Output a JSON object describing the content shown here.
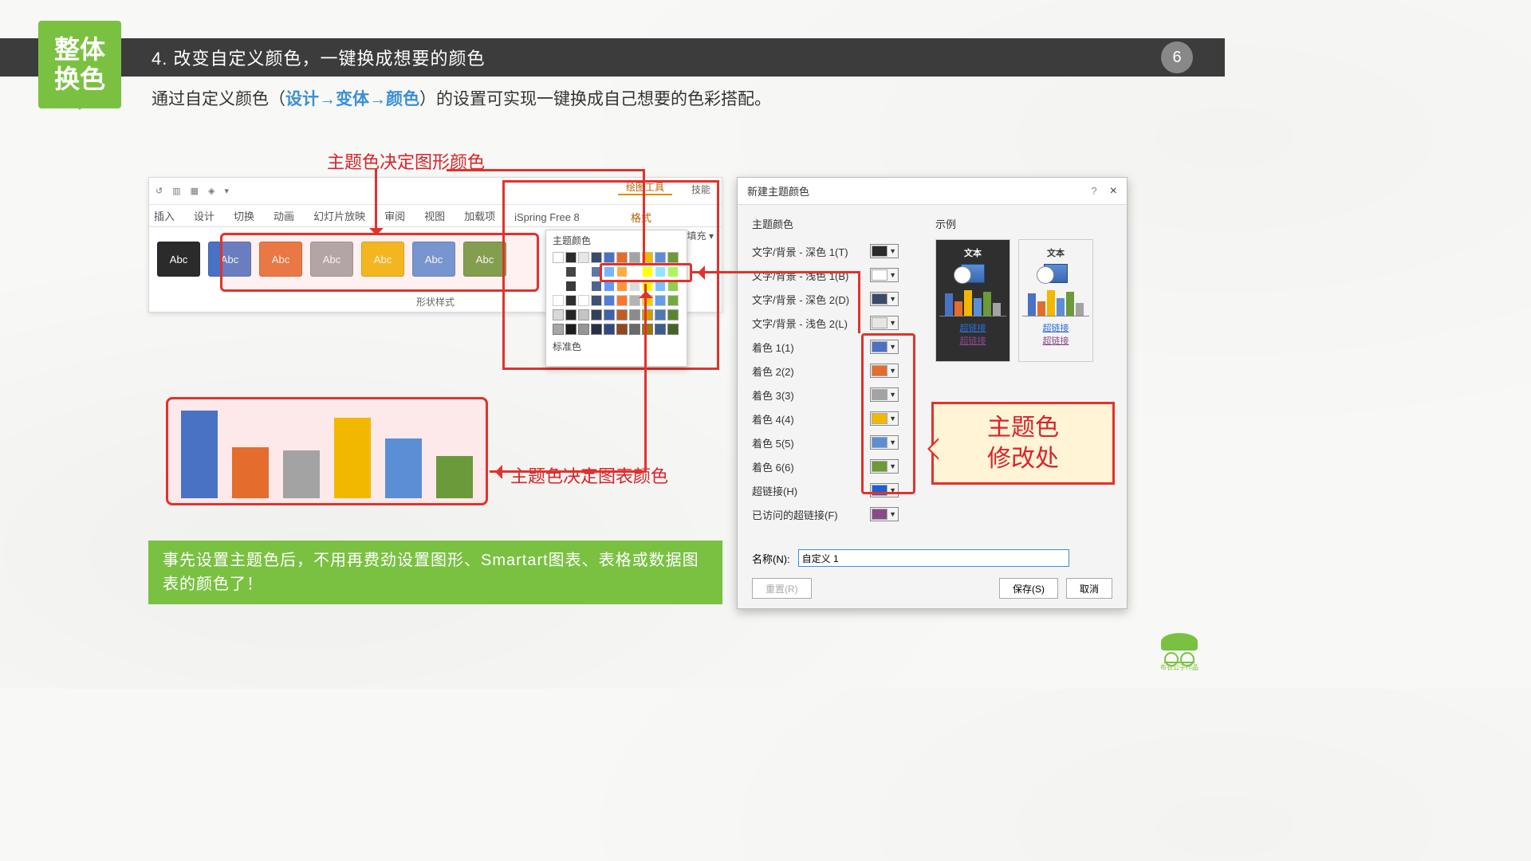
{
  "page_number": "6",
  "tag": "整体\n换色",
  "title": "4. 改变自定义颜色，一键换成想要的颜色",
  "subtitle_pre": "通过自定义颜色（",
  "subtitle_hl": "设计→变体→颜色",
  "subtitle_post": "）的设置可实现一键换成自己想要的色彩搭配。",
  "callout_top": "主题色决定图形颜色",
  "callout_right": "主题色决定图表颜色",
  "callout_box": "主题色\n修改处",
  "tip": "事先设置主题色后，不用再费劲设置图形、Smartart图表、表格或数据图表的颜色了！",
  "ribbon": {
    "tabs": [
      "插入",
      "设计",
      "切换",
      "动画",
      "幻灯片放映",
      "审阅",
      "视图",
      "加载项",
      "iSpring Free 8"
    ],
    "draw_tools": "绘图工具",
    "format": "格式",
    "tech": "技能",
    "abc_label": "Abc",
    "shape_style": "形状样式",
    "shape_fill": "形状填充",
    "theme_color": "主题颜色",
    "standard_color": "标准色",
    "abc_colors": [
      "#2b2b2b",
      "#4a72c4",
      "#e46c2c",
      "#a3a3a3",
      "#f2b800",
      "#5a8fd6",
      "#6a9a3a"
    ],
    "theme_row": [
      "#ffffff",
      "#2b2b2b",
      "#e7e6e6",
      "#3a4a6b",
      "#4a72c4",
      "#e46c2c",
      "#a3a3a3",
      "#f2b800",
      "#5a8fd6",
      "#6a9a3a"
    ],
    "theme_row_selected": [
      "#4a72c4",
      "#e46c2c",
      "#a3a3a3",
      "#f2b800",
      "#5a8fd6",
      "#6a9a3a"
    ]
  },
  "chart": {
    "type": "bar",
    "values": [
      100,
      58,
      55,
      92,
      68,
      48
    ],
    "colors": [
      "#4a72c4",
      "#e46c2c",
      "#a3a3a3",
      "#f2b800",
      "#5a8fd6",
      "#6a9a3a"
    ]
  },
  "dialog": {
    "title": "新建主题颜色",
    "help": "?",
    "close": "×",
    "section_theme": "主题颜色",
    "section_sample": "示例",
    "rows": [
      {
        "label": "文字/背景 - 深色 1(T)",
        "color": "#2b2b2b"
      },
      {
        "label": "文字/背景 - 浅色 1(B)",
        "color": "#ffffff"
      },
      {
        "label": "文字/背景 - 深色 2(D)",
        "color": "#3a4a6b"
      },
      {
        "label": "文字/背景 - 浅色 2(L)",
        "color": "#e7e6e6"
      },
      {
        "label": "着色 1(1)",
        "color": "#4a72c4"
      },
      {
        "label": "着色 2(2)",
        "color": "#e46c2c"
      },
      {
        "label": "着色 3(3)",
        "color": "#a3a3a3"
      },
      {
        "label": "着色 4(4)",
        "color": "#f2b800"
      },
      {
        "label": "着色 5(5)",
        "color": "#5a8fd6"
      },
      {
        "label": "着色 6(6)",
        "color": "#6a9a3a"
      },
      {
        "label": "超链接(H)",
        "color": "#1a5fd6"
      },
      {
        "label": "已访问的超链接(F)",
        "color": "#8a4a8a"
      }
    ],
    "preview_text": "文本",
    "preview_link1": "超链接",
    "preview_link2": "超链接",
    "mini_bar_colors": [
      "#4a72c4",
      "#e46c2c",
      "#f2b800",
      "#5a8fd6",
      "#6a9a3a",
      "#a3a3a3"
    ],
    "mini_bar_heights": [
      28,
      18,
      32,
      22,
      30,
      16
    ],
    "name_label": "名称(N):",
    "name_value": "自定义 1",
    "btn_reset": "重置(R)",
    "btn_save": "保存(S)",
    "btn_cancel": "取消"
  },
  "logo_text": "布衣公子作品"
}
